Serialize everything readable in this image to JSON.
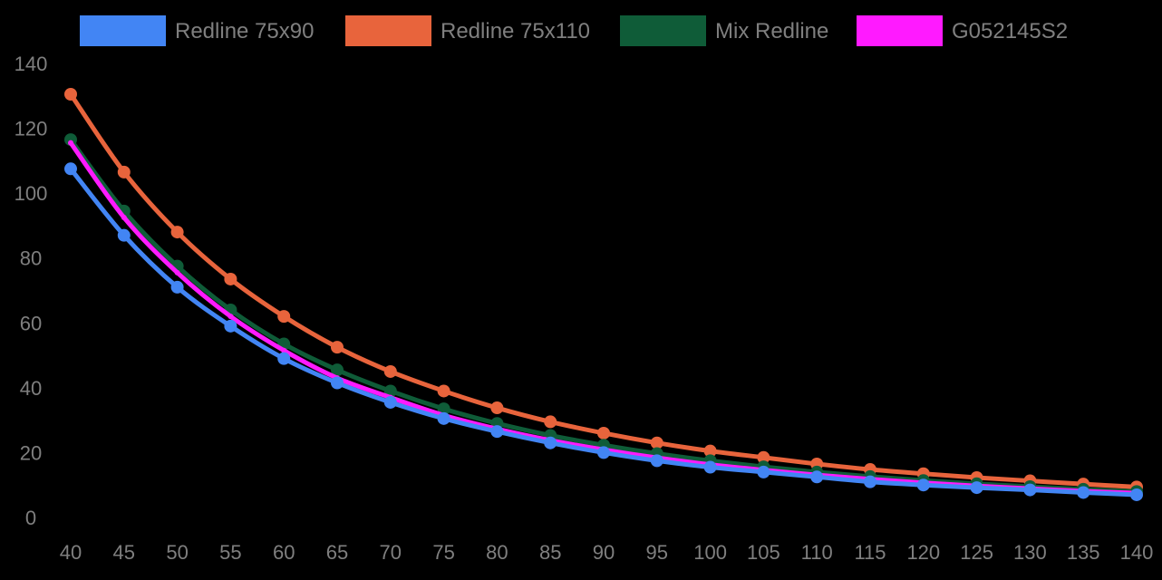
{
  "chart_data": {
    "type": "line",
    "title": "",
    "xlabel": "",
    "ylabel": "",
    "grid": false,
    "legend_position": "top",
    "background": "#000000",
    "text_color": "#7f7f7f",
    "x": [
      40,
      45,
      50,
      55,
      60,
      65,
      70,
      75,
      80,
      85,
      90,
      95,
      100,
      105,
      110,
      115,
      120,
      125,
      130,
      135,
      140
    ],
    "x_tick_labels": [
      "40",
      "45",
      "50",
      "55",
      "60",
      "65",
      "70",
      "75",
      "80",
      "85",
      "90",
      "95",
      "100",
      "105",
      "110",
      "115",
      "120",
      "125",
      "130",
      "135",
      "140"
    ],
    "ylim": [
      0,
      140
    ],
    "y_ticks": [
      0,
      20,
      40,
      60,
      80,
      100,
      120,
      140
    ],
    "y_tick_labels": [
      "0",
      "20",
      "40",
      "60",
      "80",
      "100",
      "120",
      "140"
    ],
    "series": [
      {
        "name": "Redline 75x90",
        "color": "#4285f4",
        "values": [
          107.5,
          87.0,
          71.0,
          59.0,
          49.0,
          41.5,
          35.5,
          30.5,
          26.5,
          23.0,
          20.0,
          17.5,
          15.5,
          14.0,
          12.5,
          11.0,
          10.0,
          9.2,
          8.5,
          7.7,
          7.0
        ]
      },
      {
        "name": "Redline 75x110",
        "color": "#e8643c",
        "values": [
          130.5,
          106.5,
          88.0,
          73.5,
          62.0,
          52.5,
          45.0,
          39.0,
          33.8,
          29.5,
          26.0,
          23.0,
          20.5,
          18.5,
          16.5,
          14.8,
          13.5,
          12.3,
          11.3,
          10.3,
          9.4
        ]
      },
      {
        "name": "Mix Redline",
        "color": "#0f5c38",
        "values": [
          116.5,
          94.5,
          77.5,
          64.0,
          53.5,
          45.5,
          39.0,
          33.5,
          29.0,
          25.3,
          22.3,
          19.7,
          17.5,
          15.6,
          14.0,
          12.6,
          11.4,
          10.4,
          9.5,
          8.7,
          8.0
        ]
      },
      {
        "name": "G052145S2",
        "color": "#ff1aff",
        "values": [
          115.5,
          92.5,
          75.5,
          62.0,
          51.5,
          43.0,
          37.0,
          31.5,
          27.3,
          23.8,
          20.9,
          18.4,
          16.3,
          14.6,
          13.1,
          11.8,
          10.7,
          9.7,
          8.9,
          8.1,
          7.5
        ]
      }
    ]
  }
}
